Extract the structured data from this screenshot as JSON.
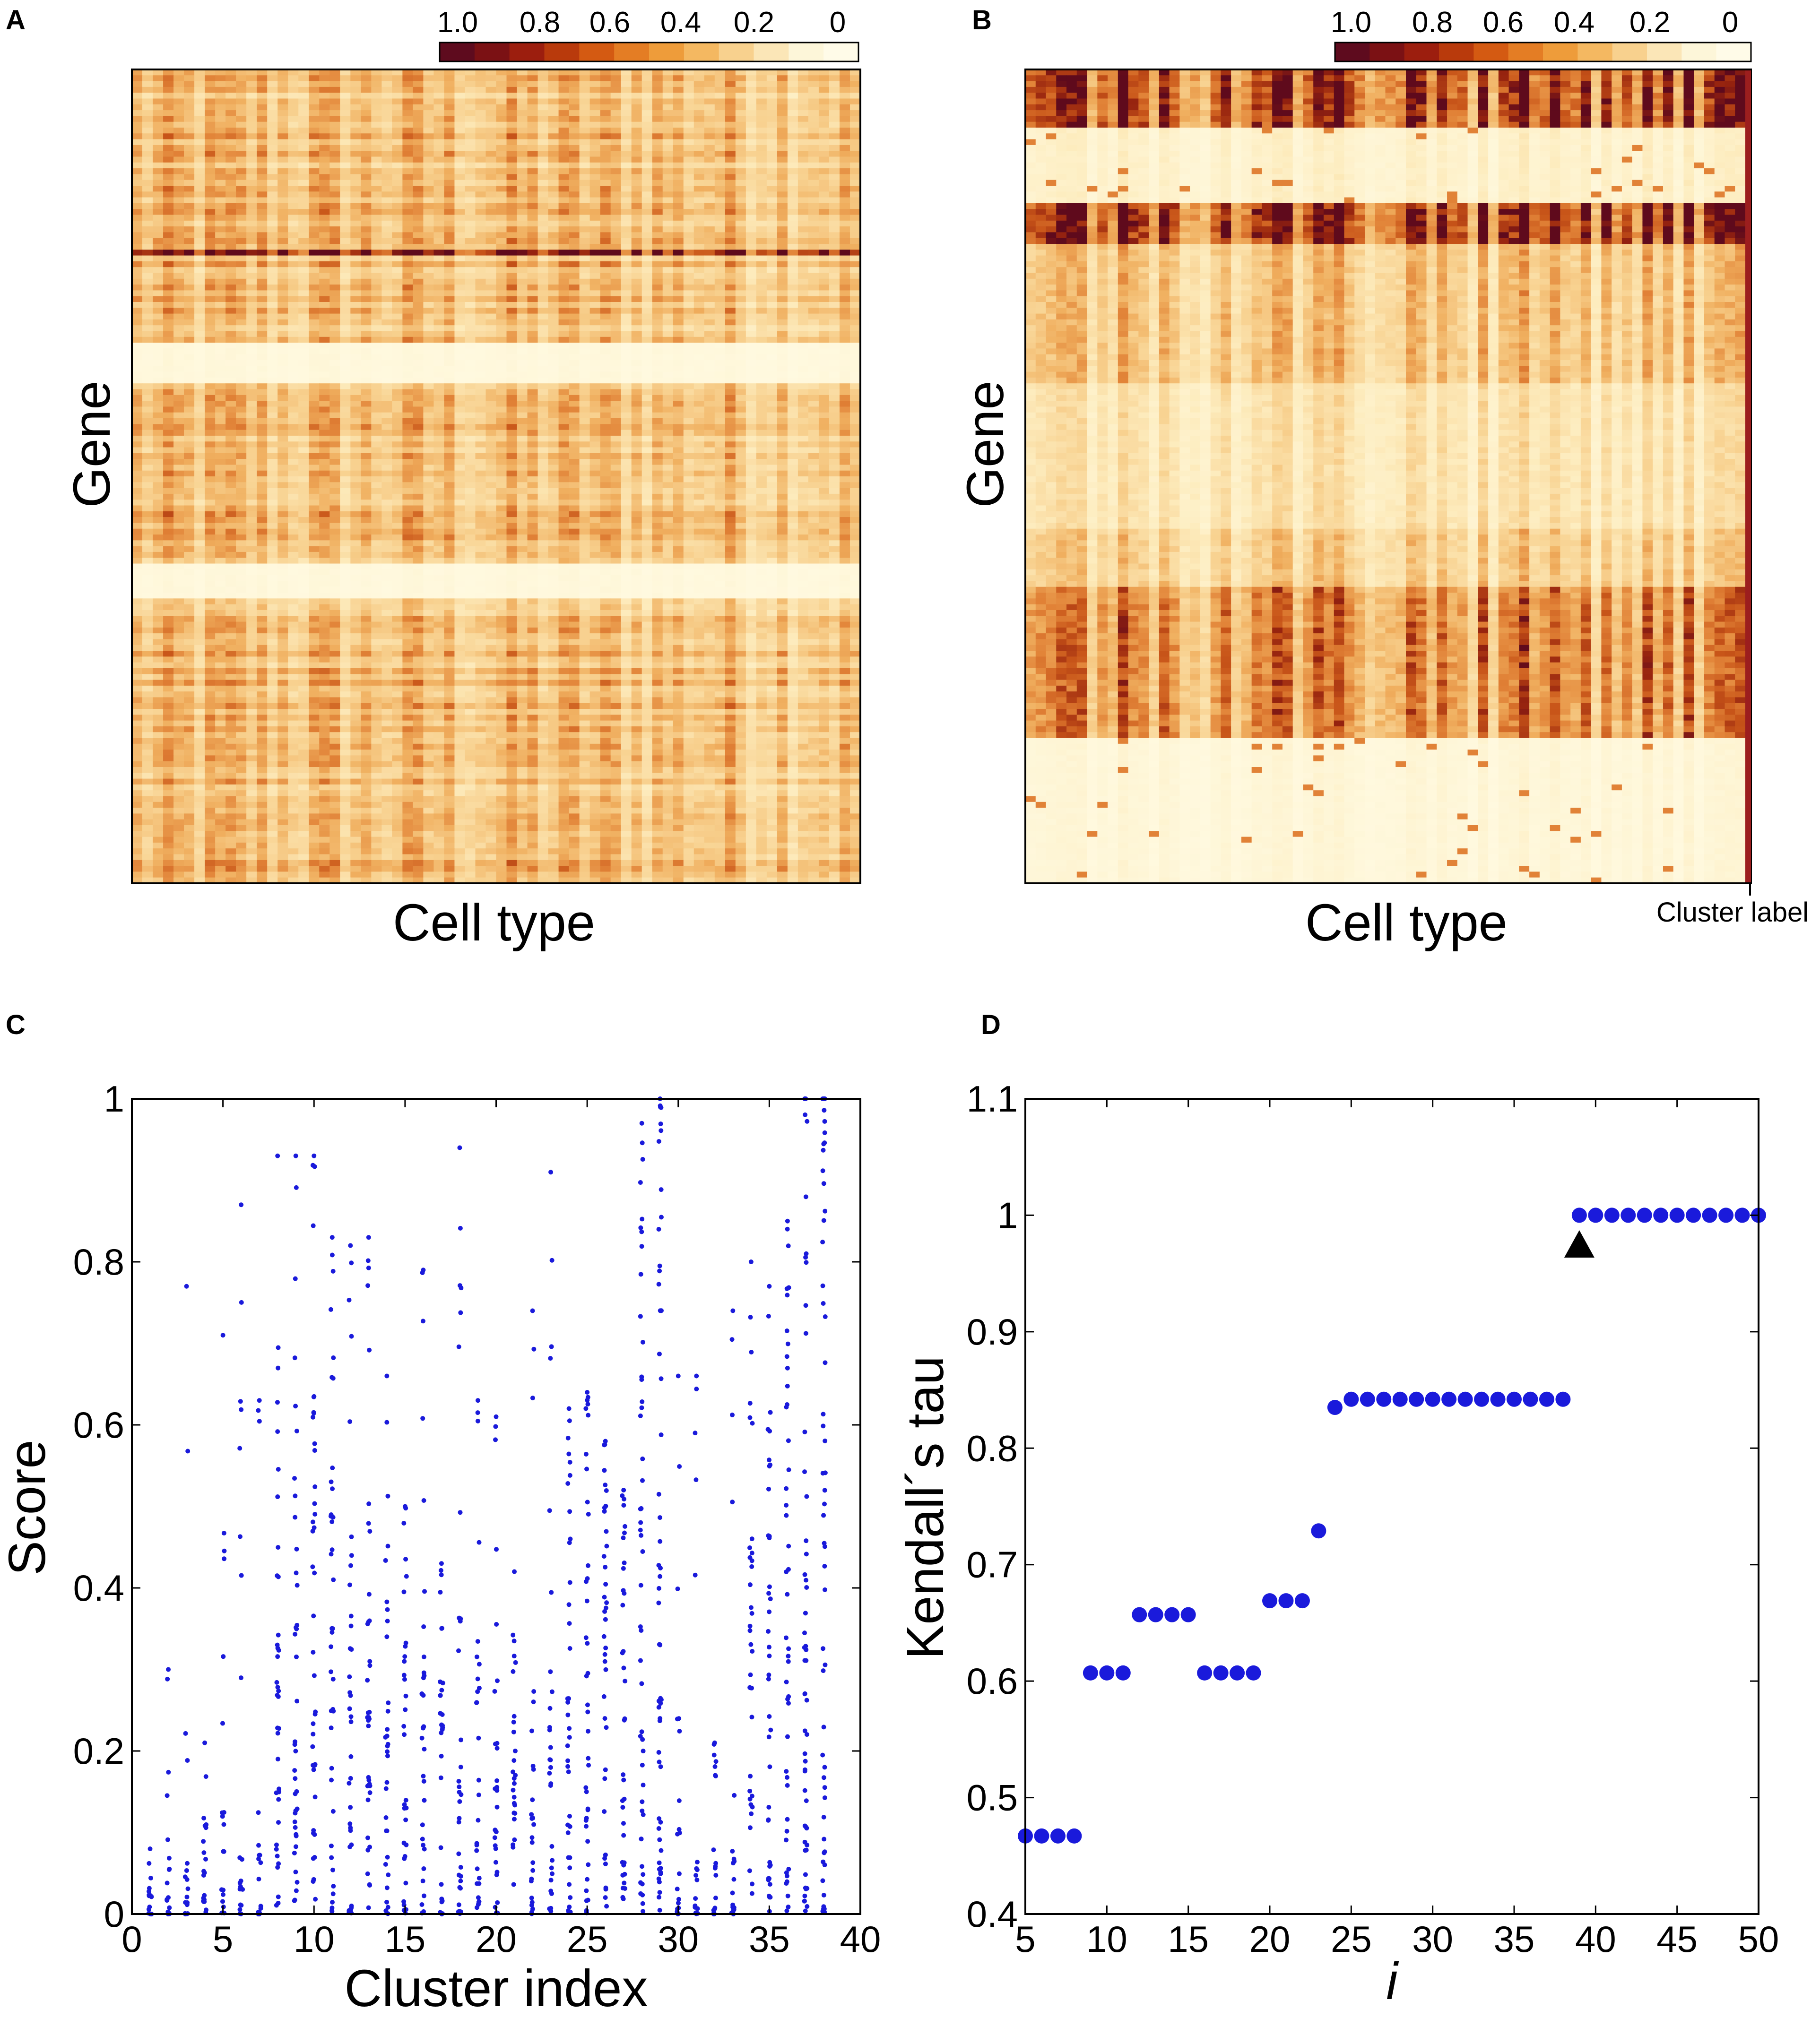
{
  "panels": {
    "A": {
      "letter": "A",
      "xlabel": "Cell type",
      "ylabel": "Gene",
      "colorbar": {
        "tick_labels": [
          "1.0",
          "0.8",
          "0.6",
          "0.4",
          "0.2",
          "0"
        ],
        "colors": [
          "#5e0b1e",
          "#7b1114",
          "#9c1e0e",
          "#b93a0c",
          "#d45a12",
          "#e47d24",
          "#ee9c3a",
          "#f4b861",
          "#f8d18e",
          "#fbe6b7",
          "#fdf6d9",
          "#fffbe8"
        ]
      }
    },
    "B": {
      "letter": "B",
      "xlabel": "Cell type",
      "ylabel": "Gene",
      "extra_label": "Cluster label",
      "colorbar": {
        "tick_labels": [
          "1.0",
          "0.8",
          "0.6",
          "0.4",
          "0.2",
          "0"
        ],
        "colors": [
          "#5e0b1e",
          "#7b1114",
          "#9c1e0e",
          "#b93a0c",
          "#d45a12",
          "#e47d24",
          "#ee9c3a",
          "#f4b861",
          "#f8d18e",
          "#fbe6b7",
          "#fdf6d9",
          "#fffbe8"
        ]
      }
    },
    "C": {
      "letter": "C"
    },
    "D": {
      "letter": "D"
    }
  },
  "chart_data": [
    {
      "id": "A",
      "type": "heatmap",
      "title": "",
      "xlabel": "Cell type",
      "ylabel": "Gene",
      "value_range": [
        0,
        1
      ]
    },
    {
      "id": "B",
      "type": "heatmap",
      "title": "",
      "xlabel": "Cell type",
      "ylabel": "Gene",
      "value_range": [
        0,
        1
      ],
      "gene_cluster_bands": [
        {
          "rows": [
            0.0,
            0.07
          ],
          "level": 0.75
        },
        {
          "rows": [
            0.07,
            0.165
          ],
          "level": 0.1
        },
        {
          "rows": [
            0.165,
            0.215
          ],
          "level": 0.8
        },
        {
          "rows": [
            0.215,
            0.385
          ],
          "level": 0.35
        },
        {
          "rows": [
            0.385,
            0.565
          ],
          "level": 0.2
        },
        {
          "rows": [
            0.565,
            0.635
          ],
          "level": 0.3
        },
        {
          "rows": [
            0.635,
            0.82
          ],
          "level": 0.55
        },
        {
          "rows": [
            0.82,
            1.0
          ],
          "level": 0.05
        }
      ]
    },
    {
      "id": "C",
      "type": "scatter",
      "title": "",
      "xlabel": "Cluster index",
      "ylabel": "Score",
      "xlim": [
        0,
        40
      ],
      "ylim": [
        0,
        1
      ],
      "xticks": [
        0,
        5,
        10,
        15,
        20,
        25,
        30,
        35,
        40
      ],
      "yticks": [
        0,
        0.2,
        0.4,
        0.6,
        0.8,
        1
      ],
      "ytick_labels": [
        "0",
        "0.2",
        "0.4",
        "0.6",
        "0.8",
        "1"
      ],
      "color": "#1a1adb",
      "clusters": [
        {
          "x": 1,
          "max": 0.08,
          "bulk": 0.02
        },
        {
          "x": 2,
          "max": 0.3,
          "bulk": 0.05
        },
        {
          "x": 3,
          "max": 0.77,
          "bulk": 0.04
        },
        {
          "x": 4,
          "max": 0.21,
          "bulk": 0.05
        },
        {
          "x": 5,
          "max": 0.71,
          "bulk": 0.08
        },
        {
          "x": 6,
          "max": 0.87,
          "bulk": 0.05
        },
        {
          "x": 7,
          "max": 0.63,
          "bulk": 0.05
        },
        {
          "x": 8,
          "max": 0.93,
          "bulk": 0.55
        },
        {
          "x": 9,
          "max": 0.93,
          "bulk": 0.6
        },
        {
          "x": 10,
          "max": 0.93,
          "bulk": 0.65
        },
        {
          "x": 11,
          "max": 0.83,
          "bulk": 0.55
        },
        {
          "x": 12,
          "max": 0.82,
          "bulk": 0.5
        },
        {
          "x": 13,
          "max": 0.83,
          "bulk": 0.5
        },
        {
          "x": 14,
          "max": 0.66,
          "bulk": 0.45
        },
        {
          "x": 15,
          "max": 0.5,
          "bulk": 0.4
        },
        {
          "x": 16,
          "max": 0.79,
          "bulk": 0.4
        },
        {
          "x": 17,
          "max": 0.43,
          "bulk": 0.3
        },
        {
          "x": 18,
          "max": 0.94,
          "bulk": 0.4
        },
        {
          "x": 19,
          "max": 0.63,
          "bulk": 0.35
        },
        {
          "x": 20,
          "max": 0.61,
          "bulk": 0.32
        },
        {
          "x": 21,
          "max": 0.42,
          "bulk": 0.25
        },
        {
          "x": 22,
          "max": 0.74,
          "bulk": 0.25
        },
        {
          "x": 23,
          "max": 0.91,
          "bulk": 0.3
        },
        {
          "x": 24,
          "max": 0.62,
          "bulk": 0.5
        },
        {
          "x": 25,
          "max": 0.64,
          "bulk": 0.55
        },
        {
          "x": 26,
          "max": 0.58,
          "bulk": 0.5
        },
        {
          "x": 27,
          "max": 0.52,
          "bulk": 0.45
        },
        {
          "x": 28,
          "max": 0.97,
          "bulk": 0.85
        },
        {
          "x": 29,
          "max": 1.0,
          "bulk": 0.95
        },
        {
          "x": 30,
          "max": 0.66,
          "bulk": 0.1
        },
        {
          "x": 31,
          "max": 0.66,
          "bulk": 0.05
        },
        {
          "x": 32,
          "max": 0.21,
          "bulk": 0.05
        },
        {
          "x": 33,
          "max": 0.74,
          "bulk": 0.05
        },
        {
          "x": 34,
          "max": 0.8,
          "bulk": 0.45
        },
        {
          "x": 35,
          "max": 0.77,
          "bulk": 0.55
        },
        {
          "x": 36,
          "max": 0.85,
          "bulk": 0.7
        },
        {
          "x": 37,
          "max": 1.0,
          "bulk": 1.0
        },
        {
          "x": 38,
          "max": 1.0,
          "bulk": 1.0
        }
      ]
    },
    {
      "id": "D",
      "type": "scatter",
      "title": "",
      "xlabel": "i",
      "ylabel": "Kendall´s tau",
      "xlim": [
        5,
        50
      ],
      "ylim": [
        0.4,
        1.1
      ],
      "xticks": [
        5,
        10,
        15,
        20,
        25,
        30,
        35,
        40,
        45,
        50
      ],
      "yticks": [
        0.4,
        0.5,
        0.6,
        0.7,
        0.8,
        0.9,
        1.0,
        1.1
      ],
      "ytick_labels": [
        "0.4",
        "0.5",
        "0.6",
        "0.7",
        "0.8",
        "0.9",
        "1",
        "1.1"
      ],
      "color": "#1a1adb",
      "x": [
        5,
        6,
        7,
        8,
        9,
        10,
        11,
        12,
        13,
        14,
        15,
        16,
        17,
        18,
        19,
        20,
        21,
        22,
        23,
        24,
        25,
        26,
        27,
        28,
        29,
        30,
        31,
        32,
        33,
        34,
        35,
        36,
        37,
        38,
        39,
        40,
        41,
        42,
        43,
        44,
        45,
        46,
        47,
        48,
        49,
        50
      ],
      "y": [
        0.467,
        0.467,
        0.467,
        0.467,
        0.607,
        0.607,
        0.607,
        0.657,
        0.657,
        0.657,
        0.657,
        0.607,
        0.607,
        0.607,
        0.607,
        0.669,
        0.669,
        0.669,
        0.729,
        0.835,
        0.842,
        0.842,
        0.842,
        0.842,
        0.842,
        0.842,
        0.842,
        0.842,
        0.842,
        0.842,
        0.842,
        0.842,
        0.842,
        0.842,
        1.0,
        1.0,
        1.0,
        1.0,
        1.0,
        1.0,
        1.0,
        1.0,
        1.0,
        1.0,
        1.0,
        1.0
      ],
      "marker": {
        "x": 39,
        "y": 0.975,
        "shape": "triangle"
      }
    }
  ]
}
